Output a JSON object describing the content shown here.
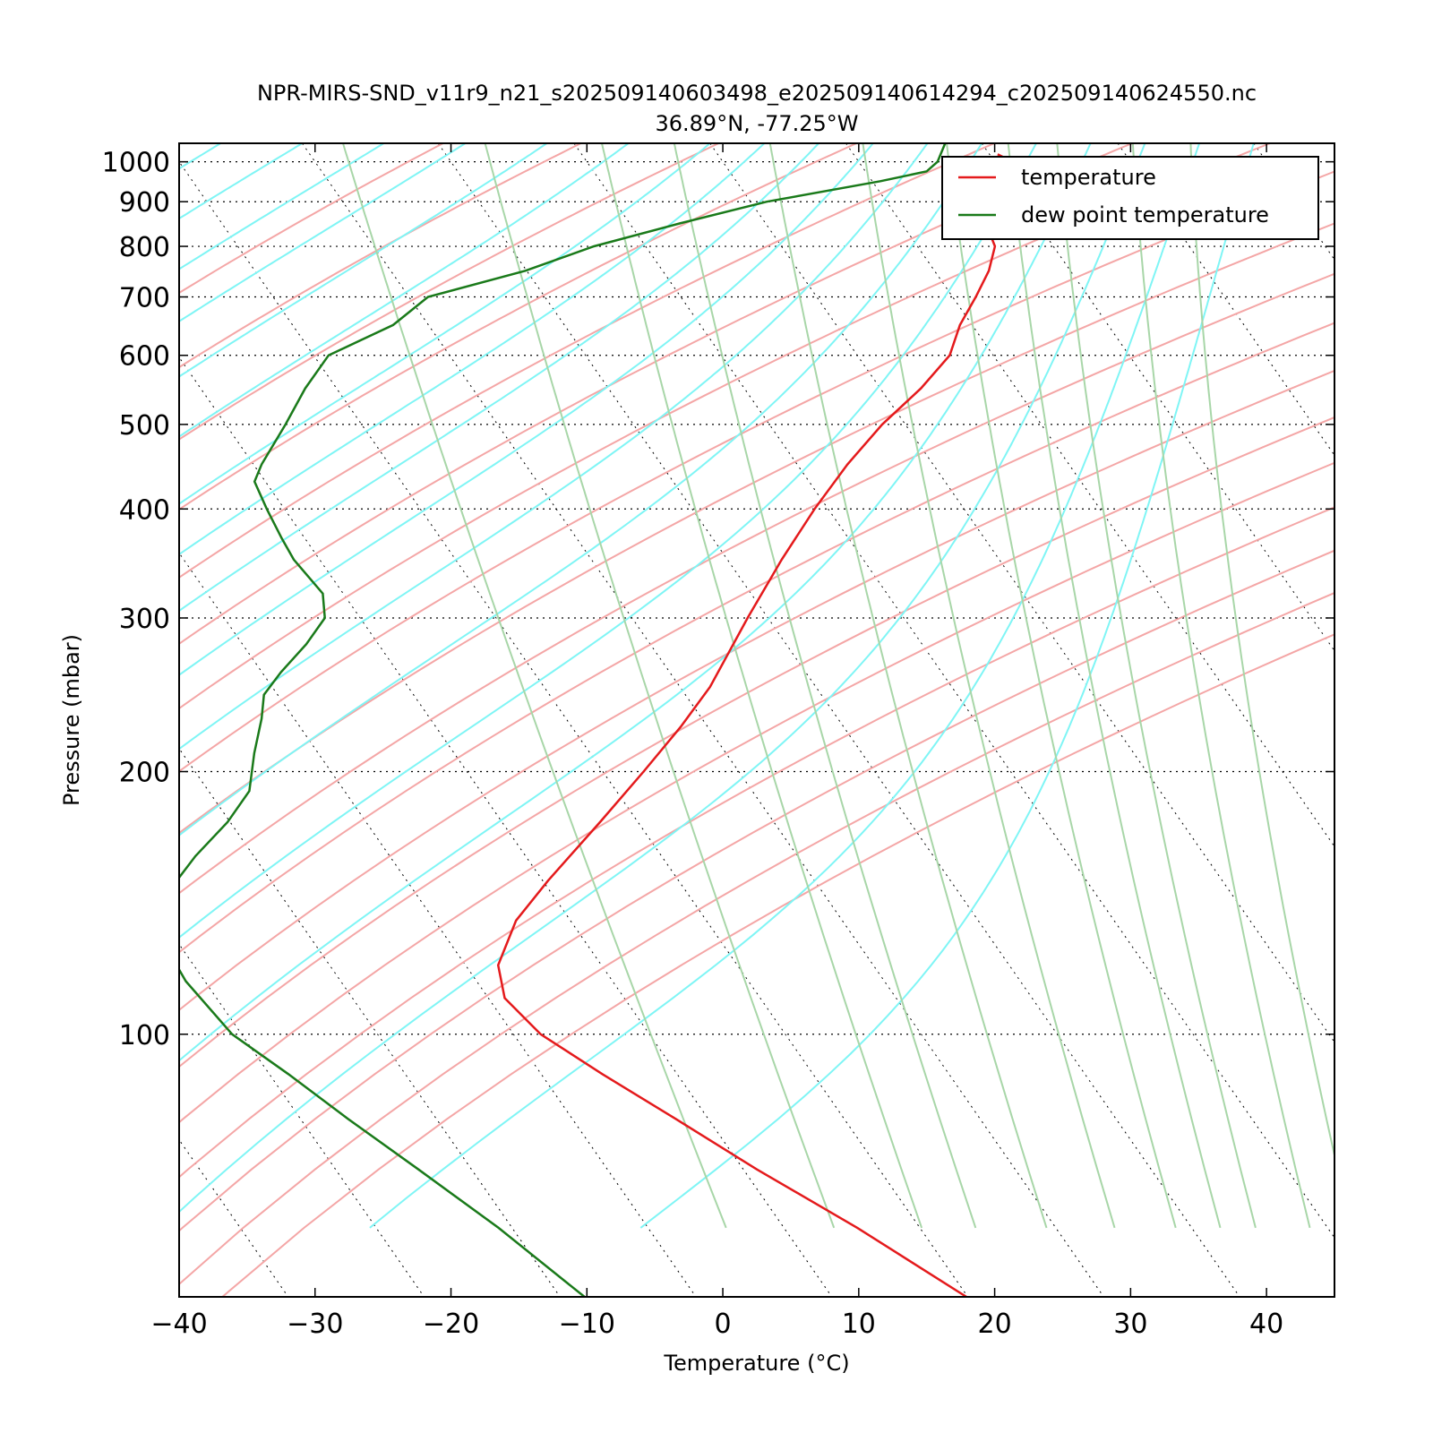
{
  "chart_data": {
    "type": "line",
    "chart_kind": "skew-T log-P diagram",
    "title": "NPR-MIRS-SND_v11r9_n21_s202509140603498_e202509140614294_c202509140624550.nc",
    "subtitle": "36.89°N, -77.25°W",
    "xlabel": "Temperature (°C)",
    "ylabel": "Pressure (mbar)",
    "xlim": [
      -40,
      45
    ],
    "ylim": [
      1050,
      50
    ],
    "y_scale": "log",
    "x_ticks": [
      "−40",
      "−30",
      "−20",
      "−10",
      "0",
      "10",
      "20",
      "30",
      "40"
    ],
    "x_tick_values": [
      -40,
      -30,
      -20,
      -10,
      0,
      10,
      20,
      30,
      40
    ],
    "y_tick_labels": [
      "100",
      "200",
      "300",
      "400",
      "500",
      "600",
      "700",
      "800",
      "900",
      "1000"
    ],
    "y_tick_values": [
      100,
      200,
      300,
      400,
      500,
      600,
      700,
      800,
      900,
      1000
    ],
    "skew_deg_per_decade": 44.6,
    "grid": true,
    "legend_position": "top-right",
    "series": [
      {
        "name": "temperature",
        "color": "#e41a1c",
        "points": [
          [
            1020,
            20.6
          ],
          [
            1000,
            21.3
          ],
          [
            975,
            19.4
          ],
          [
            950,
            17.3
          ],
          [
            925,
            16.7
          ],
          [
            900,
            16.4
          ],
          [
            850,
            16.2
          ],
          [
            800,
            15.7
          ],
          [
            750,
            14.0
          ],
          [
            700,
            11.7
          ],
          [
            650,
            9.1
          ],
          [
            600,
            6.8
          ],
          [
            550,
            3.0
          ],
          [
            500,
            -1.7
          ],
          [
            450,
            -6.3
          ],
          [
            400,
            -11.0
          ],
          [
            350,
            -16.0
          ],
          [
            300,
            -21.5
          ],
          [
            250,
            -27.8
          ],
          [
            225,
            -32.0
          ],
          [
            200,
            -37.0
          ],
          [
            175,
            -42.8
          ],
          [
            150,
            -49.6
          ],
          [
            135,
            -54.0
          ],
          [
            120,
            -57.6
          ],
          [
            110,
            -58.8
          ],
          [
            100,
            -58.0
          ],
          [
            90,
            -55.5
          ],
          [
            80,
            -52.4
          ],
          [
            70,
            -49.0
          ],
          [
            60,
            -44.6
          ],
          [
            50,
            -40.1
          ]
        ]
      },
      {
        "name": "dew point temperature",
        "color": "#1a7a1a",
        "points": [
          [
            1050,
            17.3
          ],
          [
            1000,
            15.8
          ],
          [
            975,
            14.5
          ],
          [
            950,
            10.6
          ],
          [
            900,
            1.2
          ],
          [
            850,
            -6.3
          ],
          [
            800,
            -13.8
          ],
          [
            750,
            -20.1
          ],
          [
            700,
            -28.6
          ],
          [
            650,
            -32.6
          ],
          [
            600,
            -38.9
          ],
          [
            550,
            -42.3
          ],
          [
            500,
            -45.6
          ],
          [
            450,
            -49.4
          ],
          [
            430,
            -50.8
          ],
          [
            400,
            -51.3
          ],
          [
            370,
            -51.7
          ],
          [
            350,
            -51.9
          ],
          [
            320,
            -51.5
          ],
          [
            300,
            -52.6
          ],
          [
            280,
            -55.3
          ],
          [
            260,
            -58.6
          ],
          [
            245,
            -61.0
          ],
          [
            230,
            -62.4
          ],
          [
            210,
            -64.7
          ],
          [
            190,
            -67.0
          ],
          [
            175,
            -70.2
          ],
          [
            160,
            -74.3
          ],
          [
            145,
            -78.3
          ],
          [
            130,
            -81.0
          ],
          [
            115,
            -81.4
          ],
          [
            100,
            -80.7
          ],
          [
            90,
            -78.6
          ],
          [
            80,
            -76.5
          ],
          [
            70,
            -73.9
          ],
          [
            60,
            -71.0
          ],
          [
            50,
            -68.2
          ]
        ]
      }
    ],
    "reference_lines": {
      "dry_adiabat_color": "#f4a6a6",
      "moist_adiabat_color": "#7ff5f5",
      "mixing_ratio_color": "#a8d6a8",
      "dry_adiabats_theta_K": [
        250,
        260,
        270,
        280,
        290,
        300,
        310,
        320,
        330,
        340,
        350,
        360,
        370,
        380,
        390,
        400,
        410,
        420
      ],
      "moist_adiabats_Tsurf_C": [
        -36,
        -30,
        -24,
        -18,
        -12,
        -6,
        0,
        4,
        8,
        12,
        16,
        20,
        24,
        28,
        32,
        36,
        40
      ],
      "mixing_ratios_gkg": [
        0.4,
        1,
        2,
        3,
        5,
        8,
        12,
        16,
        20,
        28,
        36
      ]
    }
  }
}
